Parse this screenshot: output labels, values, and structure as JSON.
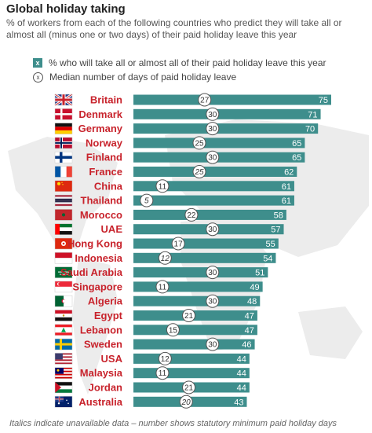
{
  "title": "Global holiday taking",
  "subtitle": "% of workers from each of the following countries who predict they will take all or almost all (minus one or two days) of their paid holiday leave this year",
  "legend": {
    "bar_label": "% who will take all or almost all of their paid holiday leave this year",
    "circle_label": "Median number of days of paid holiday leave",
    "bar_symbol": "x",
    "circle_symbol": "x"
  },
  "footer": "Italics indicate unavailable data – number shows statutory minimum paid holiday days",
  "colors": {
    "bar": "#3e8e8c",
    "country": "#c8232c",
    "map": "#ececec"
  },
  "chart_data": {
    "type": "bar",
    "orientation": "horizontal",
    "categories": [
      "Britain",
      "Denmark",
      "Germany",
      "Norway",
      "Finland",
      "France",
      "China",
      "Thailand",
      "Morocco",
      "UAE",
      "Hong Kong",
      "Indonesia",
      "Saudi Arabia",
      "Singapore",
      "Algeria",
      "Egypt",
      "Lebanon",
      "Sweden",
      "USA",
      "Malaysia",
      "Jordan",
      "Australia"
    ],
    "series": [
      {
        "name": "% who will take all or almost all of their paid holiday leave this year",
        "values": [
          75,
          71,
          70,
          65,
          65,
          62,
          61,
          61,
          58,
          57,
          55,
          54,
          51,
          49,
          48,
          47,
          47,
          46,
          44,
          44,
          44,
          43
        ]
      },
      {
        "name": "Median number of days of paid holiday leave",
        "values": [
          27,
          30,
          30,
          25,
          30,
          25,
          11,
          5,
          22,
          30,
          17,
          12,
          30,
          11,
          30,
          21,
          15,
          30,
          12,
          11,
          21,
          20
        ]
      }
    ],
    "median_unavailable": [
      false,
      false,
      false,
      false,
      false,
      true,
      false,
      true,
      false,
      false,
      false,
      true,
      false,
      false,
      false,
      false,
      false,
      false,
      false,
      false,
      false,
      true
    ],
    "flags": [
      "uk",
      "denmark",
      "germany",
      "norway",
      "finland",
      "france",
      "china",
      "thailand",
      "morocco",
      "uae",
      "hongkong",
      "indonesia",
      "saudi",
      "singapore",
      "algeria",
      "egypt",
      "lebanon",
      "sweden",
      "usa",
      "malaysia",
      "jordan",
      "australia"
    ],
    "xlim": [
      0,
      80
    ],
    "title": "Global holiday taking",
    "xlabel": "",
    "ylabel": ""
  }
}
